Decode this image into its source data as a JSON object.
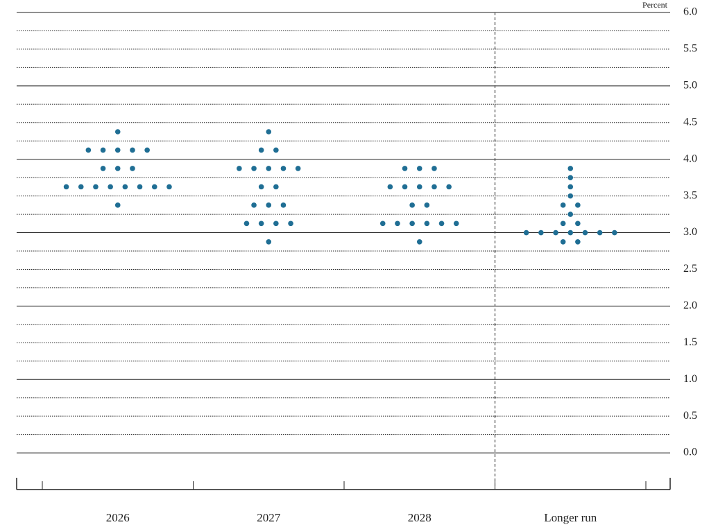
{
  "chart_data": {
    "type": "dot",
    "y_axis_label": "Percent",
    "categories": [
      "2026",
      "2027",
      "2028",
      "Longer run"
    ],
    "values": [
      [
        4.375,
        4.125,
        4.125,
        4.125,
        4.125,
        4.125,
        3.875,
        3.875,
        3.875,
        3.625,
        3.625,
        3.625,
        3.625,
        3.625,
        3.625,
        3.625,
        3.625,
        3.375
      ],
      [
        4.375,
        4.125,
        4.125,
        3.875,
        3.875,
        3.875,
        3.875,
        3.875,
        3.625,
        3.625,
        3.375,
        3.375,
        3.375,
        3.125,
        3.125,
        3.125,
        3.125,
        2.875
      ],
      [
        3.875,
        3.875,
        3.875,
        3.625,
        3.625,
        3.625,
        3.625,
        3.625,
        3.375,
        3.375,
        3.125,
        3.125,
        3.125,
        3.125,
        3.125,
        3.125,
        2.875
      ],
      [
        3.875,
        3.75,
        3.625,
        3.5,
        3.375,
        3.375,
        3.25,
        3.125,
        3.125,
        3,
        3,
        3,
        3,
        3,
        3,
        3,
        2.875,
        2.875
      ]
    ],
    "color": "#1f6e94",
    "ylim": [
      -0.5,
      6
    ],
    "yticks": [
      {
        "value": 0,
        "label": "0.0"
      },
      0.5,
      {
        "value": 1,
        "label": "1.0"
      },
      1.5,
      {
        "value": 2,
        "label": "2.0"
      },
      2.5,
      {
        "value": 3,
        "label": "3.0"
      },
      3.5,
      {
        "value": 4,
        "label": "4.0"
      },
      4.5,
      {
        "value": 5,
        "label": "5.0"
      },
      5.5,
      {
        "value": 6,
        "label": "6.0"
      }
    ],
    "grid": true
  }
}
